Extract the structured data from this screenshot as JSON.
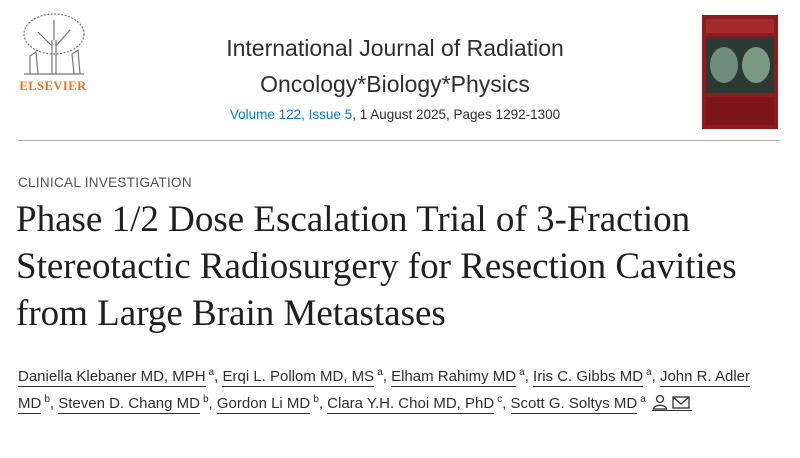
{
  "header": {
    "publisher": "ELSEVIER",
    "journal_title": "International Journal of Radiation Oncology*Biology*Physics",
    "volume_issue": "Volume 122, Issue 5",
    "date_pages": ", 1 August 2025, Pages 1292-1300"
  },
  "article": {
    "section": "CLINICAL INVESTIGATION",
    "title": "Phase 1/2 Dose Escalation Trial of 3-Fraction Stereotactic Radiosurgery for Resection Cavities from Large Brain Metastases",
    "author_separator": ",",
    "authors": [
      {
        "name": "Daniella Klebaner MD, MPH",
        "affiliation": "a"
      },
      {
        "name": "Erqi L. Pollom MD, MS",
        "affiliation": "a"
      },
      {
        "name": "Elham Rahimy MD",
        "affiliation": "a"
      },
      {
        "name": "Iris C. Gibbs MD",
        "affiliation": "a"
      },
      {
        "name": "John R. Adler MD",
        "affiliation": "b"
      },
      {
        "name": "Steven D. Chang MD",
        "affiliation": "b"
      },
      {
        "name": "Gordon Li MD",
        "affiliation": "b"
      },
      {
        "name": "Clara Y.H. Choi MD, PhD",
        "affiliation": "c"
      },
      {
        "name": "Scott G. Soltys MD",
        "affiliation": "a"
      }
    ]
  }
}
